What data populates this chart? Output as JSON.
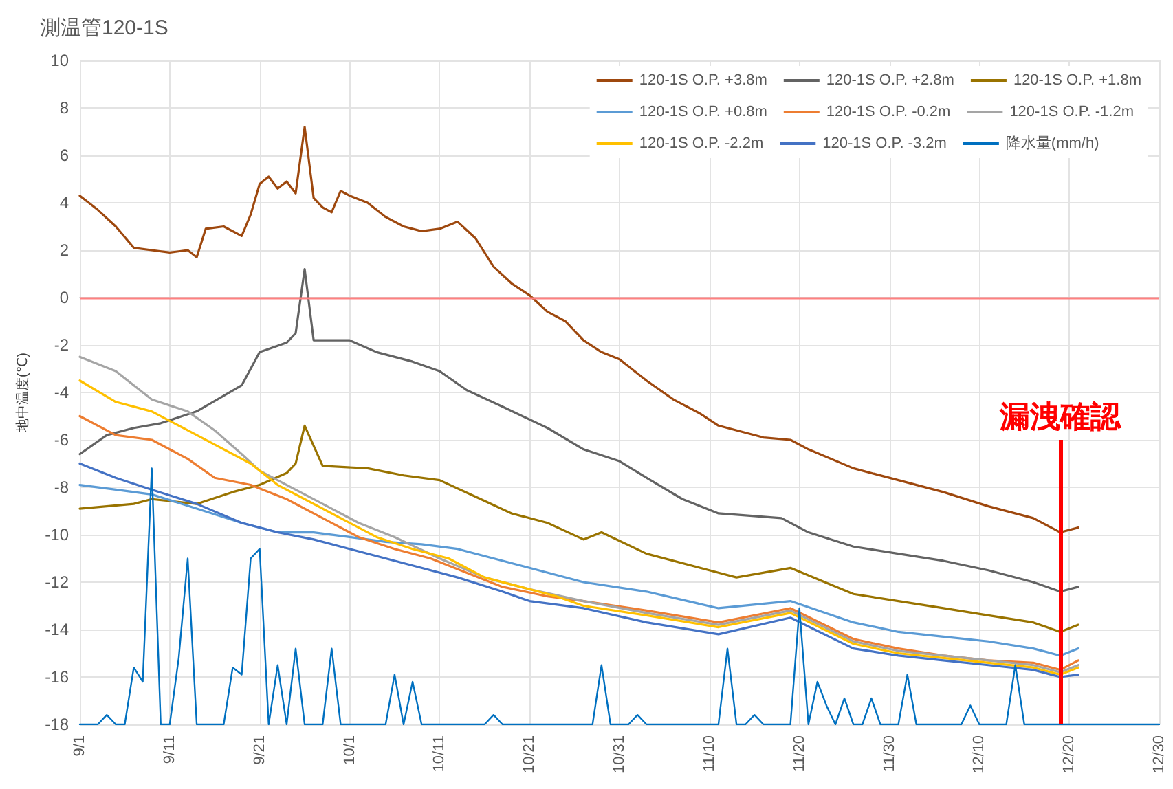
{
  "chart_data": {
    "type": "line",
    "title": "測温管120-1S",
    "ylabel": "地中温度(℃)",
    "xlim": [
      "--09-01",
      "--12-30"
    ],
    "xticks": [
      {
        "value": "--09-01",
        "label": "9/1"
      },
      {
        "value": "--09-11",
        "label": "9/11"
      },
      {
        "value": "--09-21",
        "label": "9/21"
      },
      {
        "value": "--10-01",
        "label": "10/1"
      },
      {
        "value": "--10-11",
        "label": "10/11"
      },
      {
        "value": "--10-21",
        "label": "10/21"
      },
      {
        "value": "--10-31",
        "label": "10/31"
      },
      {
        "value": "--11-10",
        "label": "11/10"
      },
      {
        "value": "--11-20",
        "label": "11/20"
      },
      {
        "value": "--11-30",
        "label": "11/30"
      },
      {
        "value": "--12-10",
        "label": "12/10"
      },
      {
        "value": "--12-20",
        "label": "12/20"
      },
      {
        "value": "--12-30",
        "label": "12/30"
      }
    ],
    "ylim": [
      -18,
      10
    ],
    "yticks": [
      -18,
      -16,
      -14,
      -12,
      -10,
      -8,
      -6,
      -4,
      -2,
      0,
      2,
      4,
      6,
      8,
      10
    ],
    "grid": true,
    "legend": "top right",
    "marker": "none",
    "line_style": "solid",
    "ref_lines": [
      {
        "axis": "y",
        "value": 0,
        "label": null,
        "color": "#ff8080"
      },
      {
        "axis": "x",
        "value": "--12-19",
        "label": null,
        "color": "#ff0000"
      }
    ],
    "annotations": [
      {
        "text": "漏洩確認",
        "x": "--12-19",
        "y": -6
      }
    ],
    "series": [
      {
        "name": "120-1S O.P. +3.8m",
        "color": "#9e480e",
        "x": [
          "--09-01",
          "--09-03",
          "--09-05",
          "--09-07",
          "--09-09",
          "--09-11",
          "--09-13",
          "--09-14",
          "--09-15",
          "--09-17",
          "--09-19",
          "--09-20",
          "--09-21",
          "--09-22",
          "--09-23",
          "--09-24",
          "--09-25",
          "--09-26",
          "--09-27",
          "--09-28",
          "--09-29",
          "--09-30",
          "--10-01",
          "--10-03",
          "--10-05",
          "--10-07",
          "--10-09",
          "--10-11",
          "--10-13",
          "--10-15",
          "--10-17",
          "--10-19",
          "--10-21",
          "--10-23",
          "--10-25",
          "--10-27",
          "--10-29",
          "--10-31",
          "--11-03",
          "--11-06",
          "--11-09",
          "--11-11",
          "--11-16",
          "--11-19",
          "--11-21",
          "--11-26",
          "--12-01",
          "--12-06",
          "--12-11",
          "--12-16",
          "--12-19",
          "--12-21"
        ],
        "values": [
          4.3,
          3.7,
          3.0,
          2.1,
          2.0,
          1.9,
          2.0,
          1.7,
          2.9,
          3.0,
          2.6,
          3.5,
          4.8,
          5.1,
          4.6,
          4.9,
          4.4,
          7.2,
          4.2,
          3.8,
          3.6,
          4.5,
          4.3,
          4.0,
          3.4,
          3.0,
          2.8,
          2.9,
          3.2,
          2.5,
          1.3,
          0.6,
          0.1,
          -0.6,
          -1.0,
          -1.8,
          -2.3,
          -2.6,
          -3.5,
          -4.3,
          -4.9,
          -5.4,
          -5.9,
          -6.0,
          -6.4,
          -7.2,
          -7.7,
          -8.2,
          -8.8,
          -9.3,
          -9.9,
          -9.7
        ]
      },
      {
        "name": "120-1S O.P. +2.8m",
        "color": "#636363",
        "x": [
          "--09-01",
          "--09-04",
          "--09-07",
          "--09-10",
          "--09-14",
          "--09-19",
          "--09-21",
          "--09-24",
          "--09-25",
          "--09-26",
          "--09-27",
          "--10-01",
          "--10-04",
          "--10-08",
          "--10-11",
          "--10-14",
          "--10-18",
          "--10-23",
          "--10-27",
          "--10-31",
          "--11-03",
          "--11-07",
          "--11-11",
          "--11-18",
          "--11-21",
          "--11-26",
          "--12-01",
          "--12-06",
          "--12-11",
          "--12-16",
          "--12-19",
          "--12-21"
        ],
        "values": [
          -6.6,
          -5.8,
          -5.5,
          -5.3,
          -4.8,
          -3.7,
          -2.3,
          -1.9,
          -1.5,
          1.2,
          -1.8,
          -1.8,
          -2.3,
          -2.7,
          -3.1,
          -3.9,
          -4.6,
          -5.5,
          -6.4,
          -6.9,
          -7.6,
          -8.5,
          -9.1,
          -9.3,
          -9.9,
          -10.5,
          -10.8,
          -11.1,
          -11.5,
          -12.0,
          -12.4,
          -12.2
        ]
      },
      {
        "name": "120-1S O.P. +1.8m",
        "color": "#997300",
        "x": [
          "--09-01",
          "--09-07",
          "--09-09",
          "--09-14",
          "--09-18",
          "--09-21",
          "--09-24",
          "--09-25",
          "--09-26",
          "--09-28",
          "--10-03",
          "--10-07",
          "--10-11",
          "--10-15",
          "--10-19",
          "--10-23",
          "--10-27",
          "--10-29",
          "--11-03",
          "--11-11",
          "--11-13",
          "--11-19",
          "--11-26",
          "--12-01",
          "--12-06",
          "--12-11",
          "--12-16",
          "--12-19",
          "--12-21"
        ],
        "values": [
          -8.9,
          -8.7,
          -8.5,
          -8.7,
          -8.2,
          -7.9,
          -7.4,
          -7.0,
          -5.4,
          -7.1,
          -7.2,
          -7.5,
          -7.7,
          -8.4,
          -9.1,
          -9.5,
          -10.2,
          -9.9,
          -10.8,
          -11.6,
          -11.8,
          -11.4,
          -12.5,
          -12.8,
          -13.1,
          -13.4,
          -13.7,
          -14.1,
          -13.8
        ]
      },
      {
        "name": "120-1S O.P. +0.8m",
        "color": "#5b9bd5",
        "x": [
          "--09-01",
          "--09-05",
          "--09-09",
          "--09-14",
          "--09-19",
          "--09-23",
          "--09-27",
          "--10-01",
          "--10-05",
          "--10-09",
          "--10-13",
          "--10-17",
          "--10-21",
          "--10-27",
          "--11-03",
          "--11-11",
          "--11-19",
          "--11-26",
          "--12-01",
          "--12-06",
          "--12-11",
          "--12-16",
          "--12-19",
          "--12-21"
        ],
        "values": [
          -7.9,
          -8.1,
          -8.3,
          -8.9,
          -9.5,
          -9.9,
          -9.9,
          -10.1,
          -10.3,
          -10.4,
          -10.6,
          -11.0,
          -11.4,
          -12.0,
          -12.4,
          -13.1,
          -12.8,
          -13.7,
          -14.1,
          -14.3,
          -14.5,
          -14.8,
          -15.1,
          -14.8
        ]
      },
      {
        "name": "120-1S O.P. -0.2m",
        "color": "#ed7d31",
        "x": [
          "--09-01",
          "--09-05",
          "--09-09",
          "--09-13",
          "--09-16",
          "--09-20",
          "--09-24",
          "--09-28",
          "--10-02",
          "--10-06",
          "--10-10",
          "--10-14",
          "--10-18",
          "--10-23",
          "--10-27",
          "--11-03",
          "--11-11",
          "--11-19",
          "--11-26",
          "--12-01",
          "--12-06",
          "--12-11",
          "--12-16",
          "--12-19",
          "--12-21"
        ],
        "values": [
          -5.0,
          -5.8,
          -6.0,
          -6.8,
          -7.6,
          -7.9,
          -8.5,
          -9.3,
          -10.1,
          -10.6,
          -11.0,
          -11.6,
          -12.2,
          -12.6,
          -12.8,
          -13.2,
          -13.7,
          -13.1,
          -14.4,
          -14.8,
          -15.1,
          -15.3,
          -15.4,
          -15.7,
          -15.3
        ]
      },
      {
        "name": "120-1S O.P. -1.2m",
        "color": "#a5a5a5",
        "x": [
          "--09-01",
          "--09-05",
          "--09-09",
          "--09-13",
          "--09-16",
          "--09-19",
          "--09-21",
          "--09-24",
          "--09-28",
          "--10-02",
          "--10-06",
          "--10-11",
          "--10-16",
          "--10-21",
          "--10-27",
          "--11-03",
          "--11-11",
          "--11-19",
          "--11-26",
          "--12-01",
          "--12-06",
          "--12-11",
          "--12-16",
          "--12-19",
          "--12-21"
        ],
        "values": [
          -2.5,
          -3.1,
          -4.3,
          -4.8,
          -5.6,
          -6.6,
          -7.3,
          -7.9,
          -8.7,
          -9.5,
          -10.1,
          -11.0,
          -11.8,
          -12.3,
          -12.8,
          -13.3,
          -13.8,
          -13.2,
          -14.5,
          -14.9,
          -15.1,
          -15.3,
          -15.5,
          -15.8,
          -15.5
        ]
      },
      {
        "name": "120-1S O.P. -2.2m",
        "color": "#ffc000",
        "x": [
          "--09-01",
          "--09-05",
          "--09-09",
          "--09-13",
          "--09-16",
          "--09-20",
          "--09-23",
          "--09-26",
          "--09-30",
          "--10-04",
          "--10-08",
          "--10-12",
          "--10-16",
          "--10-20",
          "--10-24",
          "--10-27",
          "--11-03",
          "--11-11",
          "--11-19",
          "--11-26",
          "--12-01",
          "--12-06",
          "--12-11",
          "--12-16",
          "--12-19",
          "--12-21"
        ],
        "values": [
          -3.5,
          -4.4,
          -4.8,
          -5.6,
          -6.2,
          -7.0,
          -7.9,
          -8.5,
          -9.3,
          -10.1,
          -10.6,
          -11.0,
          -11.8,
          -12.2,
          -12.6,
          -13.0,
          -13.4,
          -13.9,
          -13.3,
          -14.6,
          -15.0,
          -15.2,
          -15.4,
          -15.6,
          -15.9,
          -15.6
        ]
      },
      {
        "name": "120-1S O.P. -3.2m",
        "color": "#4472c4",
        "x": [
          "--09-01",
          "--09-05",
          "--09-09",
          "--09-14",
          "--09-19",
          "--09-23",
          "--09-27",
          "--10-01",
          "--10-05",
          "--10-09",
          "--10-13",
          "--10-18",
          "--10-21",
          "--10-27",
          "--11-03",
          "--11-11",
          "--11-19",
          "--11-26",
          "--12-01",
          "--12-06",
          "--12-11",
          "--12-16",
          "--12-19",
          "--12-21"
        ],
        "values": [
          -7.0,
          -7.6,
          -8.1,
          -8.7,
          -9.5,
          -9.9,
          -10.2,
          -10.6,
          -11.0,
          -11.4,
          -11.8,
          -12.4,
          -12.8,
          -13.1,
          -13.7,
          -14.2,
          -13.5,
          -14.8,
          -15.1,
          -15.3,
          -15.5,
          -15.7,
          -16.0,
          -15.9
        ]
      },
      {
        "name": "降水量(mm/h)",
        "color": "#0070c0",
        "x": [
          "--09-01",
          "--09-03",
          "--09-04",
          "--09-05",
          "--09-06",
          "--09-07",
          "--09-08",
          "--09-09",
          "--09-10",
          "--09-11",
          "--09-12",
          "--09-13",
          "--09-14",
          "--09-17",
          "--09-18",
          "--09-19",
          "--09-20",
          "--09-21",
          "--09-22",
          "--09-23",
          "--09-24",
          "--09-25",
          "--09-26",
          "--09-28",
          "--09-29",
          "--09-30",
          "--10-05",
          "--10-06",
          "--10-07",
          "--10-08",
          "--10-09",
          "--10-16",
          "--10-17",
          "--10-18",
          "--10-28",
          "--10-29",
          "--10-30",
          "--11-01",
          "--11-02",
          "--11-03",
          "--11-11",
          "--11-12",
          "--11-13",
          "--11-14",
          "--11-15",
          "--11-16",
          "--11-19",
          "--11-20",
          "--11-21",
          "--11-22",
          "--11-23",
          "--11-24",
          "--11-25",
          "--11-26",
          "--11-27",
          "--11-28",
          "--11-29",
          "--12-01",
          "--12-02",
          "--12-03",
          "--12-08",
          "--12-09",
          "--12-10",
          "--12-13",
          "--12-14",
          "--12-15",
          "--12-30"
        ],
        "values": [
          -18,
          -18,
          -17.6,
          -18,
          -18,
          -15.6,
          -16.2,
          -7.2,
          -18,
          -18,
          -15.2,
          -11.0,
          -18,
          -18,
          -15.6,
          -15.9,
          -11.0,
          -10.6,
          -18,
          -15.5,
          -18,
          -14.8,
          -18,
          -18,
          -14.8,
          -18,
          -18,
          -15.9,
          -18,
          -16.2,
          -18,
          -18,
          -17.6,
          -18,
          -18,
          -15.5,
          -18,
          -18,
          -17.6,
          -18,
          -18,
          -14.8,
          -18,
          -18,
          -17.6,
          -18,
          -18,
          -13.1,
          -18,
          -16.2,
          -17.2,
          -18,
          -16.9,
          -18,
          -18,
          -16.9,
          -18,
          -18,
          -15.9,
          -18,
          -18,
          -17.2,
          -18,
          -18,
          -15.5,
          -18,
          -18
        ]
      }
    ]
  }
}
